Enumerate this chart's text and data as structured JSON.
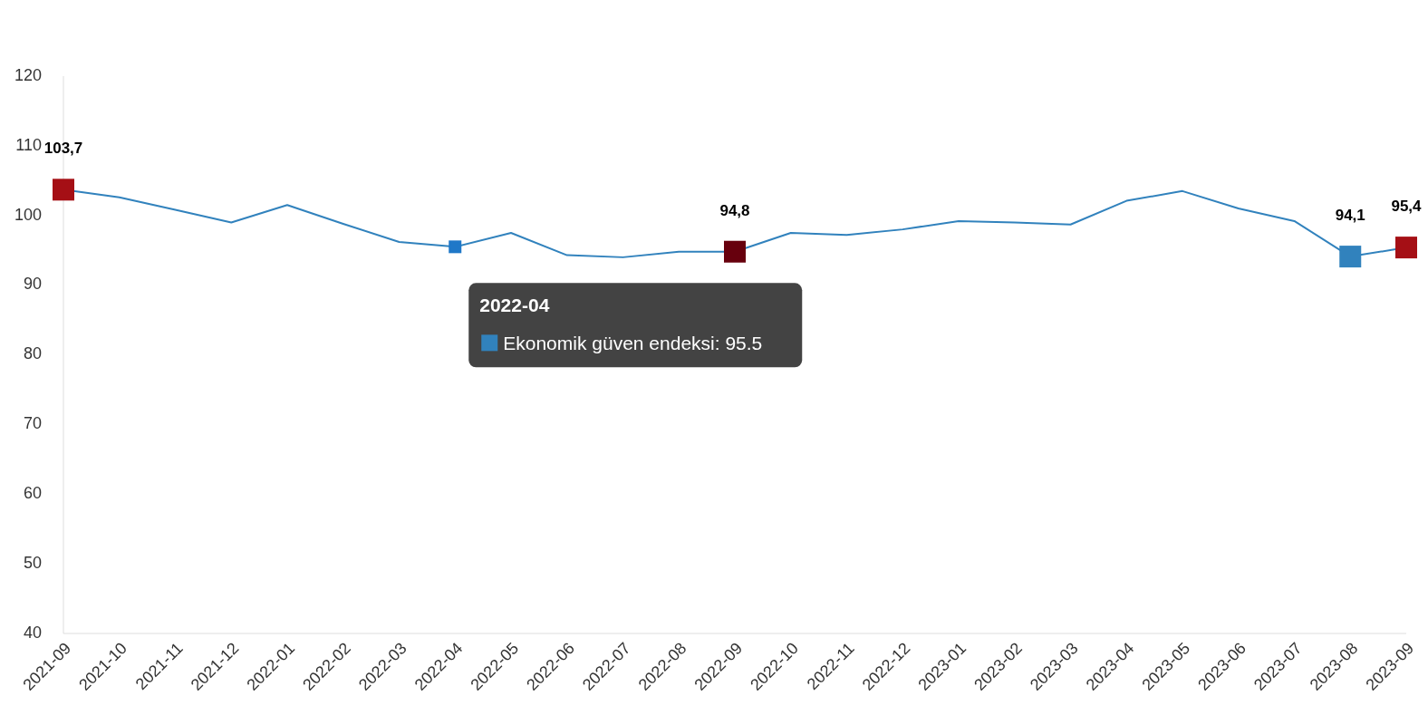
{
  "chart_data": {
    "type": "line",
    "categories": [
      "2021-09",
      "2021-10",
      "2021-11",
      "2021-12",
      "2022-01",
      "2022-02",
      "2022-03",
      "2022-04",
      "2022-05",
      "2022-06",
      "2022-07",
      "2022-08",
      "2022-09",
      "2022-10",
      "2022-11",
      "2022-12",
      "2023-01",
      "2023-02",
      "2023-03",
      "2023-04",
      "2023-05",
      "2023-06",
      "2023-07",
      "2023-08",
      "2023-09"
    ],
    "series": [
      {
        "color": "#3182bd",
        "values": [
          103.7,
          102.6,
          100.8,
          99.0,
          101.5,
          98.8,
          96.2,
          95.5,
          97.5,
          94.3,
          94.0,
          94.8,
          94.8,
          97.5,
          97.2,
          98.0,
          99.2,
          99.0,
          98.7,
          102.1,
          103.5,
          101.0,
          99.2,
          94.1,
          95.4
        ],
        "colors": [
          "#a50f15",
          null,
          null,
          null,
          null,
          null,
          null,
          "#1f78c8",
          null,
          null,
          null,
          null,
          "#67000d",
          null,
          null,
          null,
          null,
          null,
          null,
          null,
          null,
          null,
          null,
          "#3182bd",
          "#a50f15"
        ],
        "value_labels": [
          "103,7",
          null,
          null,
          null,
          null,
          null,
          null,
          null,
          null,
          null,
          null,
          null,
          "94,8",
          null,
          null,
          null,
          null,
          null,
          null,
          null,
          null,
          null,
          null,
          "94,1",
          "95,4"
        ]
      }
    ],
    "ylim": [
      40,
      120
    ],
    "yticks": [
      40,
      50,
      60,
      70,
      80,
      90,
      100,
      110,
      120
    ],
    "grid": false,
    "line_style": "solid",
    "annotations": [
      {
        "text": "2022-04\nEkonomik güven endeksi: 95.5",
        "x": "2022-04",
        "y": 95.5
      }
    ]
  }
}
